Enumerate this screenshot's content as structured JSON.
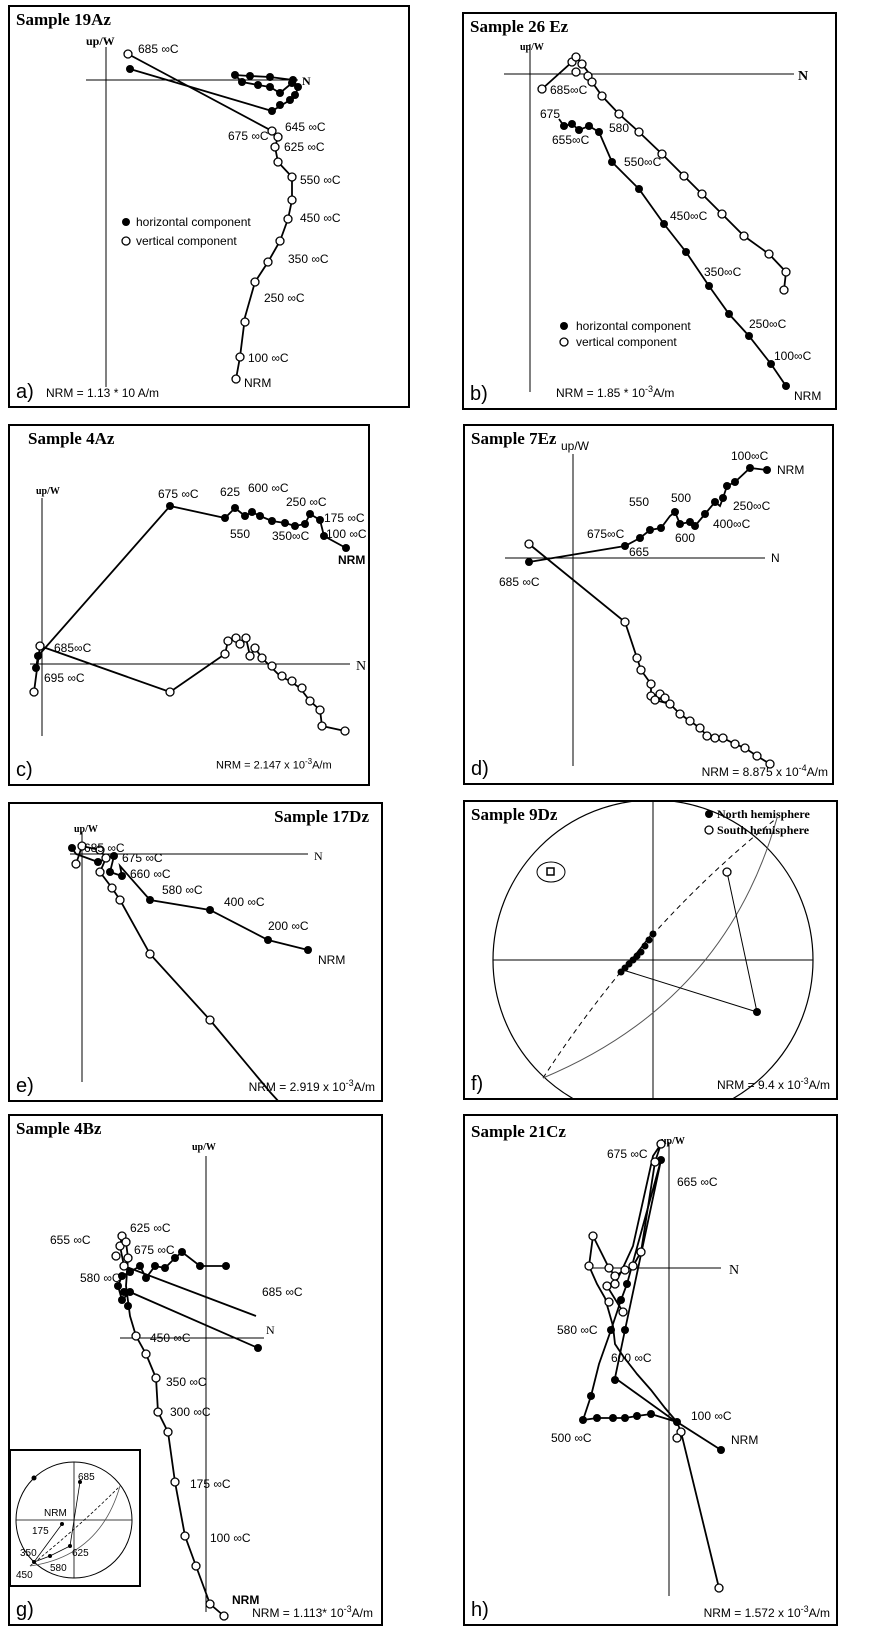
{
  "panels": [
    {
      "id": "a",
      "letter": "a)",
      "title": "Sample 19Az",
      "nrm": "NRM = 1.13 * 10   A/m",
      "axis_up": "up/W",
      "axis_n": "N",
      "legend": [
        "horizontal component",
        "vertical component"
      ],
      "labels": [
        "685 ∞C",
        "675 ∞C",
        "645 ∞C",
        "625 ∞C",
        "550 ∞C",
        "450 ∞C",
        "350 ∞C",
        "250 ∞C",
        "100 ∞C",
        "NRM"
      ]
    },
    {
      "id": "b",
      "letter": "b)",
      "title": "Sample 26 Ez",
      "nrm": "NRM = 1.85 * 10",
      "nrm_exp": "-3",
      "nrm_unit": "A/m",
      "axis_up": "up/W",
      "axis_n": "N",
      "legend": [
        "horizontal component",
        "vertical component"
      ],
      "labels": [
        "685∞C",
        "675",
        "655∞C",
        "580",
        "550∞C",
        "450∞C",
        "350∞C",
        "250∞C",
        "100∞C",
        "NRM"
      ]
    },
    {
      "id": "c",
      "letter": "c)",
      "title": "Sample 4Az",
      "nrm": "NRM = 2.147 x 10",
      "nrm_exp": "-3",
      "nrm_unit": "A/m",
      "axis_up": "up/W",
      "axis_n": "N",
      "labels": [
        "675 ∞C",
        "625",
        "600 ∞C",
        "250 ∞C",
        "175 ∞C",
        "100 ∞C",
        "550",
        "350∞C",
        "NRM",
        "685∞C",
        "695 ∞C"
      ]
    },
    {
      "id": "d",
      "letter": "d)",
      "title": "Sample 7Ez",
      "nrm": "NRM = 8.875 x 10",
      "nrm_exp": "-4",
      "nrm_unit": "A/m",
      "axis_up": "up/W",
      "axis_n": "N",
      "labels": [
        "100∞C",
        "NRM",
        "500",
        "550",
        "250∞C",
        "400∞C",
        "675∞C",
        "600",
        "665",
        "685 ∞C"
      ]
    },
    {
      "id": "e",
      "letter": "e)",
      "title": "Sample 17Dz",
      "nrm": "NRM = 2.919 x 10",
      "nrm_exp": "-3",
      "nrm_unit": "A/m",
      "axis_up": "up/W",
      "axis_n": "N",
      "labels": [
        "685 ∞C",
        "675 ∞C",
        "660 ∞C",
        "580 ∞C",
        "400 ∞C",
        "200 ∞C",
        "NRM"
      ]
    },
    {
      "id": "f",
      "letter": "f)",
      "title": "Sample 9Dz",
      "nrm": "NRM = 9.4 x 10",
      "nrm_exp": "-3",
      "nrm_unit": "A/m",
      "legend": [
        "North hemisphere",
        "South hemisphere"
      ]
    },
    {
      "id": "g",
      "letter": "g)",
      "title": "Sample 4Bz",
      "nrm": "NRM = 1.113* 10",
      "nrm_exp": "-3",
      "nrm_unit": "A/m",
      "axis_up": "up/W",
      "axis_n": "N",
      "labels": [
        "655 ∞C",
        "625 ∞C",
        "675 ∞C",
        "580 ∞C",
        "685 ∞C",
        "450 ∞C",
        "350 ∞C",
        "300 ∞C",
        "175 ∞C",
        "100 ∞C",
        "NRM"
      ],
      "inset_labels": [
        "685",
        "NRM",
        "175",
        "350",
        "625",
        "580",
        "450"
      ]
    },
    {
      "id": "h",
      "letter": "h)",
      "title": "Sample  21Cz",
      "nrm": "NRM = 1.572 x 10",
      "nrm_exp": "-3",
      "nrm_unit": "A/m",
      "axis_up": "up/W",
      "axis_n": "N",
      "labels": [
        "675 ∞C",
        "665 ∞C",
        "580 ∞C",
        "600 ∞C",
        "100 ∞C",
        "500 ∞C",
        "NRM"
      ]
    }
  ]
}
